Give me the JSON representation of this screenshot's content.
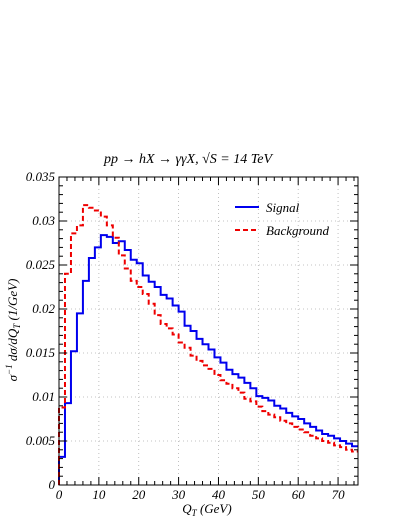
{
  "chart_data": {
    "type": "line",
    "title": "pp → hX → γγX, √S = 14 TeV",
    "xlabel": "Q_T (GeV)",
    "ylabel": "σ⁻¹ dσ/dQ_T (1/GeV)",
    "xlim": [
      0,
      75
    ],
    "ylim": [
      0,
      0.035
    ],
    "grid": true,
    "legend_position": "top-right",
    "x_ticks": [
      "0",
      "10",
      "20",
      "30",
      "40",
      "50",
      "60",
      "70"
    ],
    "y_ticks": [
      "0",
      "0.005",
      "0.01",
      "0.015",
      "0.02",
      "0.025",
      "0.03",
      "0.035"
    ],
    "bin_width": 1.5,
    "series": [
      {
        "name": "Signal",
        "color": "#0000ee",
        "style": "solid",
        "values": [
          0.0032,
          0.0093,
          0.0152,
          0.0195,
          0.0232,
          0.0258,
          0.027,
          0.0284,
          0.0282,
          0.0275,
          0.0277,
          0.0267,
          0.0256,
          0.0252,
          0.0238,
          0.0231,
          0.0225,
          0.0216,
          0.0212,
          0.0204,
          0.0197,
          0.0181,
          0.0175,
          0.0166,
          0.016,
          0.0154,
          0.0145,
          0.0139,
          0.0131,
          0.0126,
          0.0122,
          0.0116,
          0.011,
          0.0101,
          0.0099,
          0.0096,
          0.009,
          0.0087,
          0.0082,
          0.0078,
          0.0075,
          0.007,
          0.0066,
          0.0062,
          0.0058,
          0.0056,
          0.0053,
          0.005,
          0.0047,
          0.0044
        ]
      },
      {
        "name": "Background",
        "color": "#ee0000",
        "style": "dashed",
        "values": [
          0.0088,
          0.024,
          0.0286,
          0.0295,
          0.0318,
          0.0315,
          0.0312,
          0.0305,
          0.0295,
          0.0281,
          0.0261,
          0.0246,
          0.0232,
          0.0225,
          0.0217,
          0.0206,
          0.0193,
          0.0183,
          0.0178,
          0.0171,
          0.0162,
          0.0156,
          0.0147,
          0.0141,
          0.0136,
          0.0132,
          0.0125,
          0.0119,
          0.0115,
          0.011,
          0.0105,
          0.0098,
          0.0095,
          0.0089,
          0.0084,
          0.008,
          0.0077,
          0.0073,
          0.007,
          0.0066,
          0.0063,
          0.006,
          0.0056,
          0.0053,
          0.005,
          0.0048,
          0.0045,
          0.0043,
          0.004,
          0.0038
        ]
      }
    ]
  }
}
